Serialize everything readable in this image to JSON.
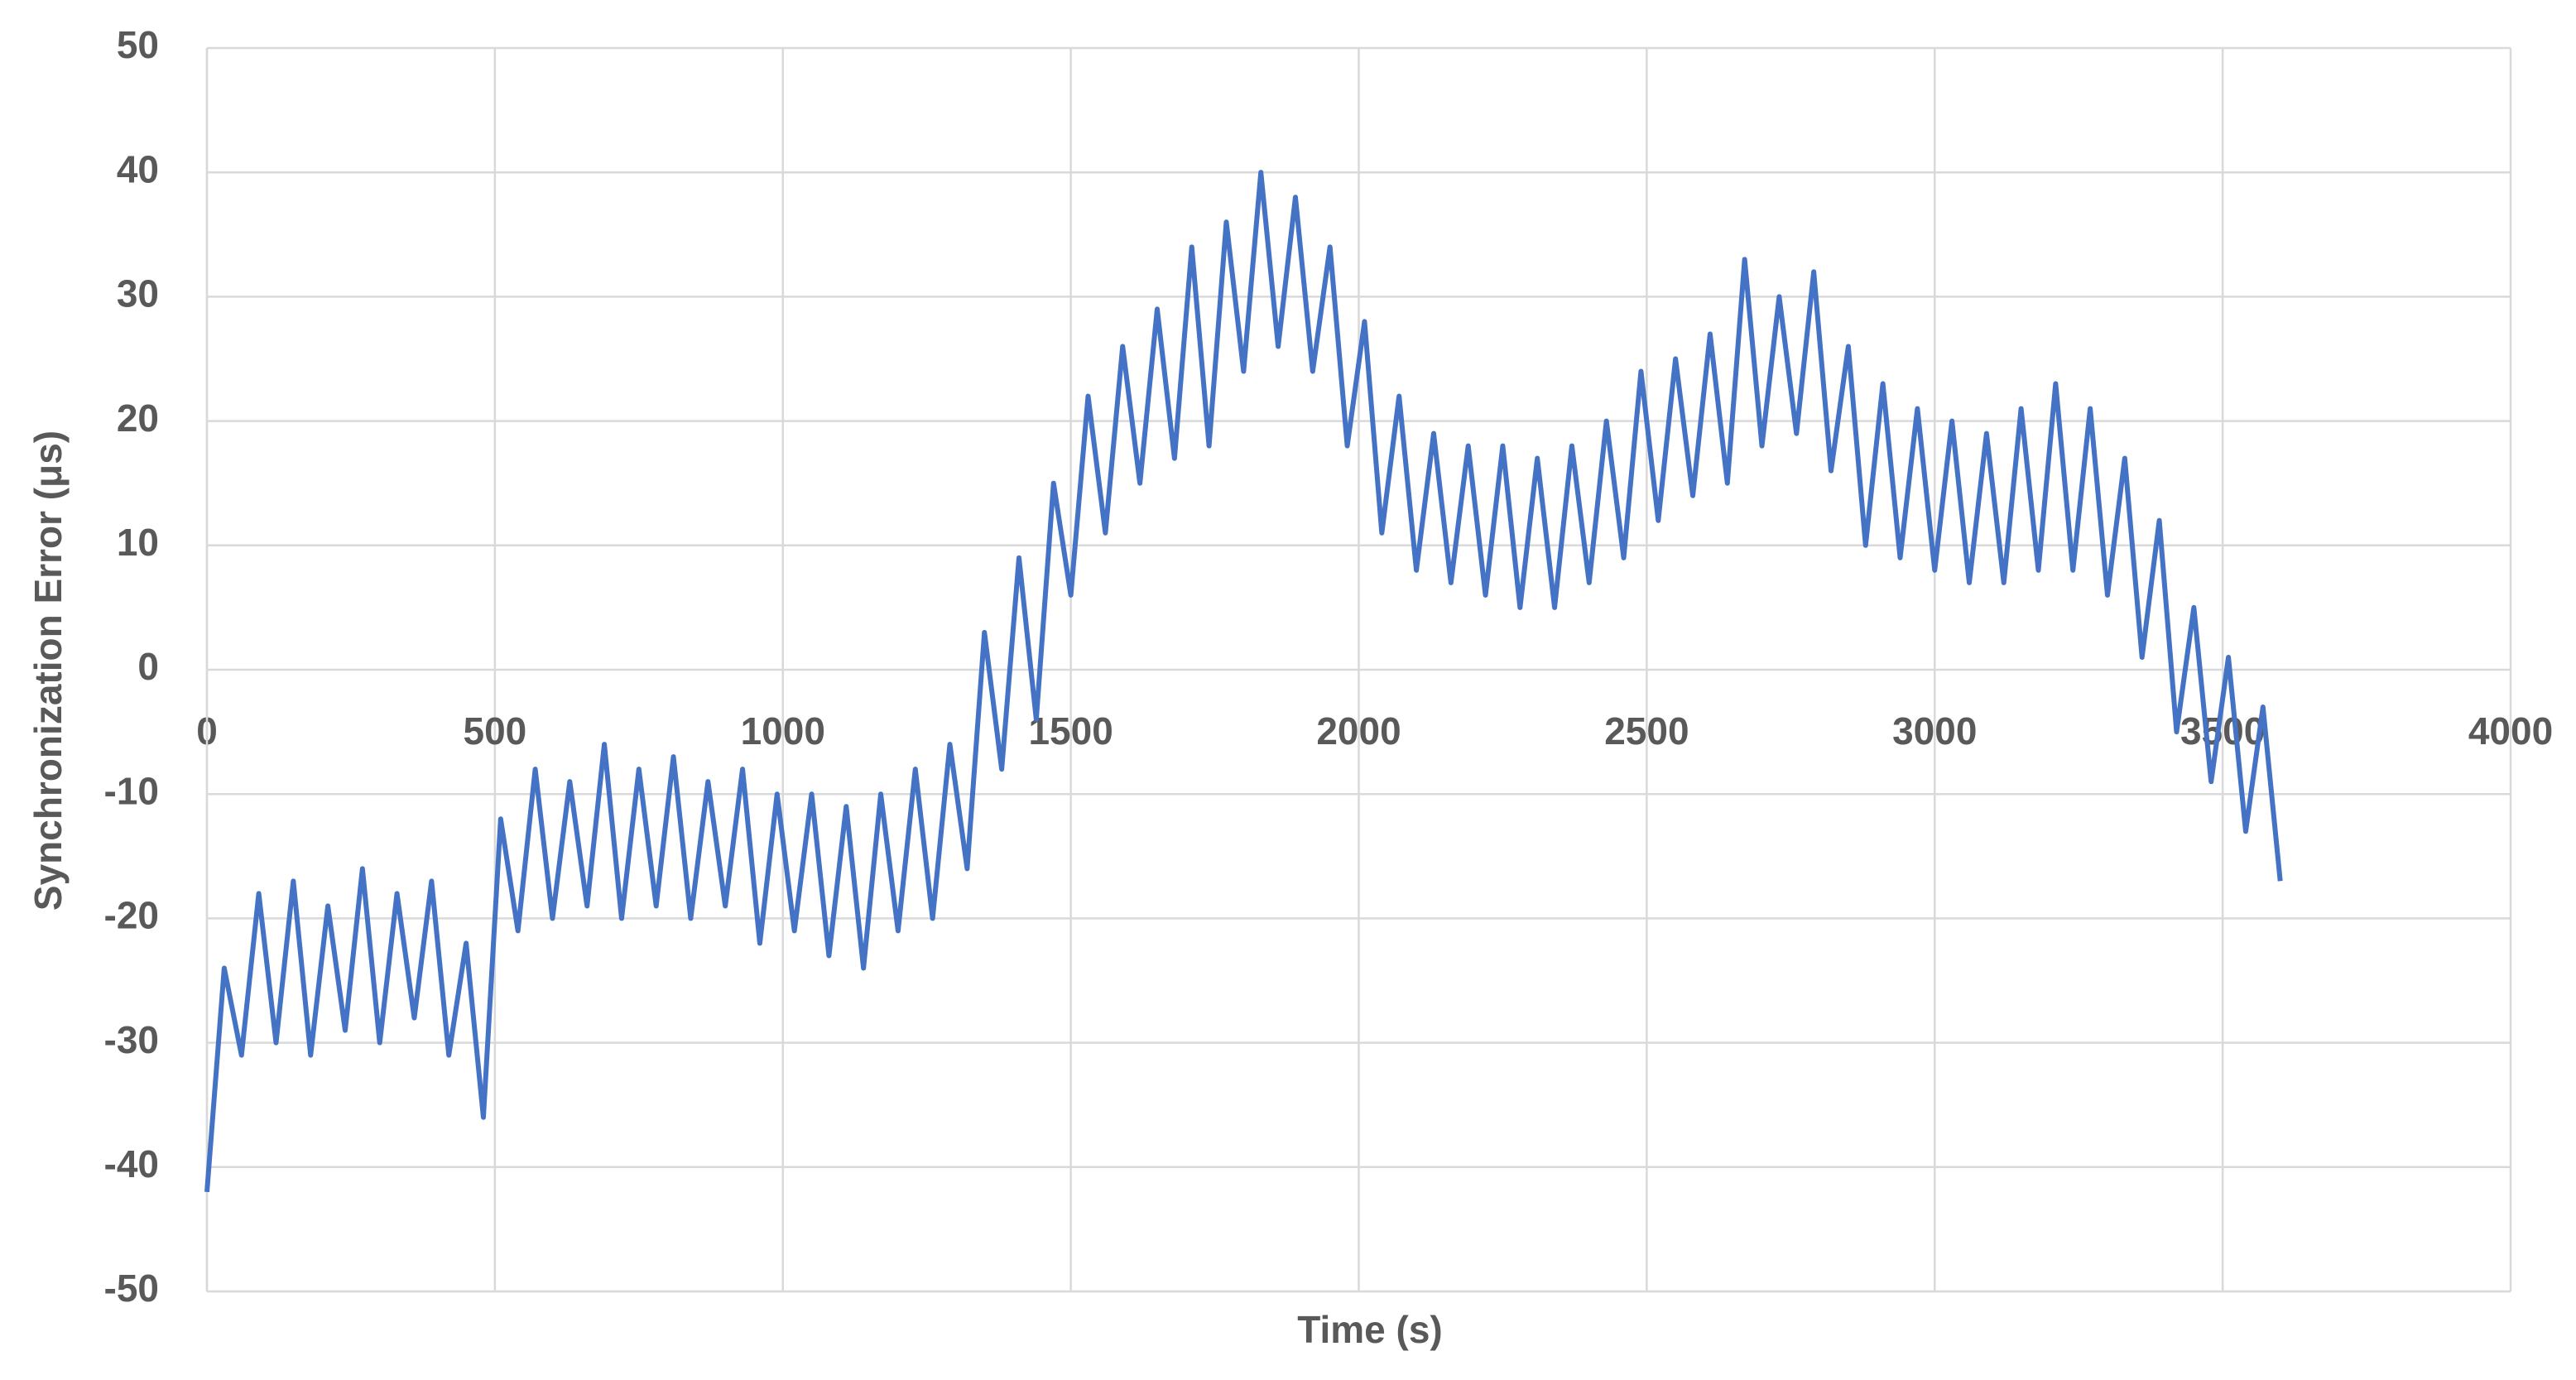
{
  "chart_data": {
    "type": "line",
    "x_label": "Time (s)",
    "y_label": "Synchronization Error (μs)",
    "x": [
      0,
      30,
      60,
      90,
      120,
      150,
      180,
      210,
      240,
      270,
      300,
      330,
      360,
      390,
      420,
      450,
      480,
      510,
      540,
      570,
      600,
      630,
      660,
      690,
      720,
      750,
      780,
      810,
      840,
      870,
      900,
      930,
      960,
      990,
      1020,
      1050,
      1080,
      1110,
      1140,
      1170,
      1200,
      1230,
      1260,
      1290,
      1320,
      1350,
      1380,
      1410,
      1440,
      1470,
      1500,
      1530,
      1560,
      1590,
      1620,
      1650,
      1680,
      1710,
      1740,
      1770,
      1800,
      1830,
      1860,
      1890,
      1920,
      1950,
      1980,
      2010,
      2040,
      2070,
      2100,
      2130,
      2160,
      2190,
      2220,
      2250,
      2280,
      2310,
      2340,
      2370,
      2400,
      2430,
      2460,
      2490,
      2520,
      2550,
      2580,
      2610,
      2640,
      2670,
      2700,
      2730,
      2760,
      2790,
      2820,
      2850,
      2880,
      2910,
      2940,
      2970,
      3000,
      3030,
      3060,
      3090,
      3120,
      3150,
      3180,
      3210,
      3240,
      3270,
      3300,
      3330,
      3360,
      3390,
      3420,
      3450,
      3480,
      3510,
      3540,
      3570,
      3600
    ],
    "series": [
      {
        "color": "#4472c4",
        "values": [
          -42,
          -24,
          -31,
          -18,
          -30,
          -17,
          -31,
          -19,
          -29,
          -16,
          -30,
          -18,
          -28,
          -17,
          -31,
          -22,
          -36,
          -12,
          -21,
          -8,
          -20,
          -9,
          -19,
          -6,
          -20,
          -8,
          -19,
          -7,
          -20,
          -9,
          -19,
          -8,
          -22,
          -10,
          -21,
          -10,
          -23,
          -11,
          -24,
          -10,
          -21,
          -8,
          -20,
          -6,
          -16,
          3,
          -8,
          9,
          -4,
          15,
          6,
          22,
          11,
          26,
          15,
          29,
          17,
          34,
          18,
          36,
          24,
          40,
          26,
          38,
          24,
          34,
          18,
          28,
          11,
          22,
          8,
          19,
          7,
          18,
          6,
          18,
          5,
          17,
          5,
          18,
          7,
          20,
          9,
          24,
          12,
          25,
          14,
          27,
          15,
          33,
          18,
          30,
          19,
          32,
          16,
          26,
          10,
          23,
          9,
          21,
          8,
          20,
          7,
          19,
          7,
          21,
          8,
          23,
          8,
          21,
          6,
          17,
          1,
          12,
          -5,
          5,
          -9,
          1,
          -13,
          -3,
          -17
        ]
      }
    ],
    "xlim": [
      0,
      4000
    ],
    "xticks": [
      0,
      500,
      1000,
      1500,
      2000,
      2500,
      3000,
      3500,
      4000
    ],
    "ylim": [
      -50,
      50
    ],
    "yticks": [
      -50,
      -40,
      -30,
      -20,
      -10,
      0,
      10,
      20,
      30,
      40,
      50
    ],
    "grid": true
  }
}
